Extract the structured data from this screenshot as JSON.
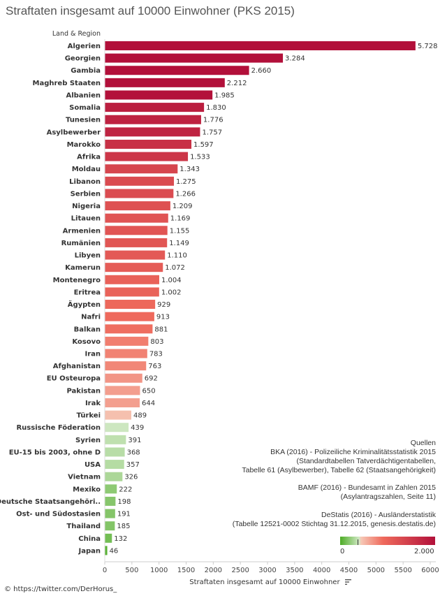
{
  "title": "Straftaten insgesamt auf 10000 Einwohner (PKS 2015)",
  "chart_data": {
    "type": "bar",
    "orientation": "horizontal",
    "category_header": "Land & Region",
    "categories": [
      "Algerien",
      "Georgien",
      "Gambia",
      "Maghreb Staaten",
      "Albanien",
      "Somalia",
      "Tunesien",
      "Asylbewerber",
      "Marokko",
      "Afrika",
      "Moldau",
      "Libanon",
      "Serbien",
      "Nigeria",
      "Litauen",
      "Armenien",
      "Rumänien",
      "Libyen",
      "Kamerun",
      "Montenegro",
      "Eritrea",
      "Ägypten",
      "Nafri",
      "Balkan",
      "Kosovo",
      "Iran",
      "Afghanistan",
      "EU Osteuropa",
      "Pakistan",
      "Irak",
      "Türkei",
      "Russische Föderation",
      "Syrien",
      "EU-15 bis 2003, ohne D",
      "USA",
      "Vietnam",
      "Mexiko",
      "Deutsche Staatsangehöri..",
      "Ost- und Südostasien",
      "Thailand",
      "China",
      "Japan"
    ],
    "values": [
      5728,
      3284,
      2660,
      2212,
      1985,
      1830,
      1776,
      1757,
      1597,
      1533,
      1343,
      1275,
      1266,
      1209,
      1169,
      1155,
      1149,
      1110,
      1072,
      1004,
      1002,
      929,
      913,
      881,
      803,
      783,
      763,
      692,
      650,
      644,
      489,
      439,
      391,
      368,
      357,
      326,
      222,
      198,
      191,
      185,
      132,
      46
    ],
    "value_labels": [
      "5.728",
      "3.284",
      "2.660",
      "2.212",
      "1.985",
      "1.830",
      "1.776",
      "1.757",
      "1.597",
      "1.533",
      "1.343",
      "1.275",
      "1.266",
      "1.209",
      "1.169",
      "1.155",
      "1.149",
      "1.110",
      "1.072",
      "1.004",
      "1.002",
      "929",
      "913",
      "881",
      "803",
      "783",
      "763",
      "692",
      "650",
      "644",
      "489",
      "439",
      "391",
      "368",
      "357",
      "326",
      "222",
      "198",
      "191",
      "185",
      "132",
      "46"
    ],
    "xlabel": "Straftaten insgesamt auf 10000 Einwohner",
    "xlim": [
      0,
      6000
    ],
    "xticks": [
      "0",
      "500",
      "1000",
      "1500",
      "2000",
      "2500",
      "3000",
      "3500",
      "4000",
      "4500",
      "5000",
      "5500",
      "6000"
    ],
    "color_scale": {
      "type": "diverging",
      "min_label": "0",
      "max_label": "2.000",
      "low": "#4dac26",
      "light_low": "#d0e8c4",
      "light_high": "#f6c8b6",
      "mid": "#ef6a5c",
      "high": "#b2103a"
    },
    "grid": false
  },
  "sources": {
    "heading": "Quellen",
    "block1": [
      "BKA (2016) - Polizeiliche Kriminalitätsstatistik 2015",
      "(Standardtabellen Tatverdächtigentabellen,",
      "Tabelle 61 (Asylbewerber), Tabelle 62 (Staatsangehörigkeit)"
    ],
    "block2": [
      "BAMF (2016) - Bundesamt in Zahlen 2015",
      "(Asylantragszahlen, Seite 11)"
    ],
    "block3": [
      "DeStatis (2016) -  Ausländerstatistik",
      "(Tabelle 12521-0002 Stichtag 31.12.2015,  genesis.destatis.de)"
    ]
  },
  "credit": "© https://twitter.com/DerHorus_"
}
